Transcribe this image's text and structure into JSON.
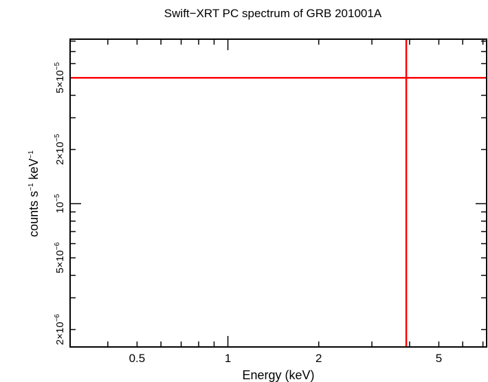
{
  "chart_data": {
    "type": "scatter",
    "title": "Swift−XRT PC spectrum of GRB 201001A",
    "xlabel": "Energy (keV)",
    "ylabel": {
      "base": "counts s",
      "exp1": "−1",
      "mid": " keV",
      "exp2": "−1"
    },
    "x_scale": "log",
    "y_scale": "log",
    "xlim": [
      0.3,
      7.2
    ],
    "ylim": [
      1.6e-06,
      8.2e-05
    ],
    "x_ticks": [
      {
        "value": 0.5,
        "label": "0.5"
      },
      {
        "value": 1,
        "label": "1"
      },
      {
        "value": 2,
        "label": "2"
      },
      {
        "value": 5,
        "label": "5"
      }
    ],
    "y_ticks": [
      {
        "value": 2e-06,
        "mant": "2×10",
        "exp": "−6"
      },
      {
        "value": 5e-06,
        "mant": "5×10",
        "exp": "−6"
      },
      {
        "value": 1e-05,
        "mant": "10",
        "exp": "−5"
      },
      {
        "value": 2e-05,
        "mant": "2×10",
        "exp": "−5"
      },
      {
        "value": 5e-05,
        "mant": "5×10",
        "exp": "−5"
      }
    ],
    "grid": false,
    "series": [
      {
        "color": "#ff0000",
        "points": [
          {
            "x_center": 3.9,
            "x_low": 0.3,
            "x_high": 7.2,
            "y": 5e-05,
            "y_low": 1.6e-06,
            "y_high": 8.2e-05
          }
        ]
      }
    ]
  }
}
